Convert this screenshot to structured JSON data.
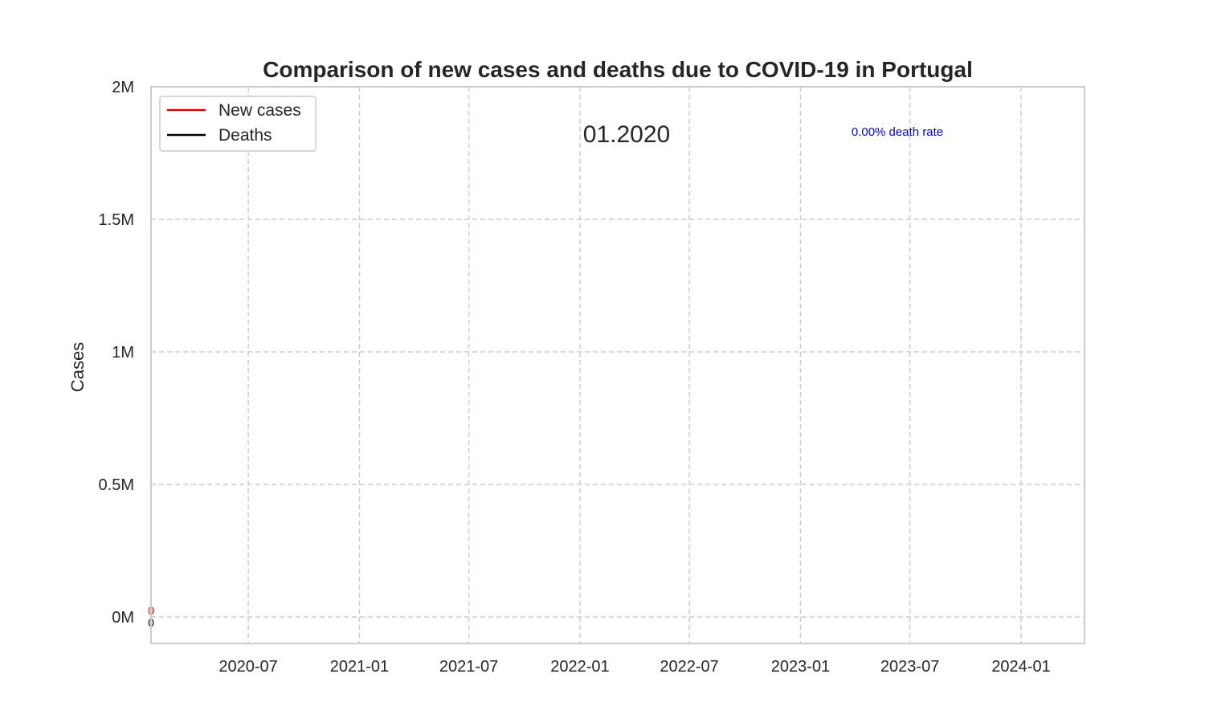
{
  "chart_data": {
    "type": "line",
    "title": "Comparison of new cases and deaths due to COVID-19 in Portugal",
    "xlabel": "",
    "ylabel": "Cases",
    "x_ticks": [
      "2020-07",
      "2021-01",
      "2021-07",
      "2022-01",
      "2022-07",
      "2023-01",
      "2023-07",
      "2024-01"
    ],
    "y_ticks": [
      {
        "value": 0,
        "label": "0M"
      },
      {
        "value": 500000,
        "label": "0.5M"
      },
      {
        "value": 1000000,
        "label": "1M"
      },
      {
        "value": 1500000,
        "label": "1.5M"
      },
      {
        "value": 2000000,
        "label": "2M"
      }
    ],
    "xlim": [
      "2020-01-22",
      "2024-04-15"
    ],
    "ylim": [
      -100000,
      2000000
    ],
    "grid": true,
    "legend_position": "top-left",
    "series": [
      {
        "name": "New cases",
        "color": "#e00000",
        "x": [
          "2020-01-22"
        ],
        "values": [
          0
        ],
        "end_label": "0"
      },
      {
        "name": "Deaths",
        "color": "#000000",
        "x": [
          "2020-01-22"
        ],
        "values": [
          0
        ],
        "end_label": "0"
      }
    ],
    "annotations": {
      "date": "01.2020",
      "death_rate": "0.00% death rate",
      "death_rate_color": "#0000ff"
    }
  }
}
